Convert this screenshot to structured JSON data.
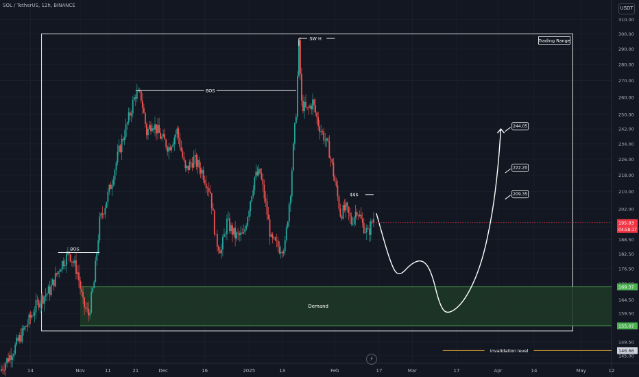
{
  "header": {
    "symbol_line": "SOL / TetherUS, 12h, BINANCE",
    "currency_button": "USDT",
    "bolt_icon": "lightning-icon"
  },
  "colors": {
    "background": "#131722",
    "bull": "#26a69a",
    "bear": "#ef5350",
    "demand_fill": "#1e3a26",
    "demand_line": "#4caf50",
    "annotation": "#ffffff",
    "price_tag": "#f23645",
    "invalidation": "#d7a13a"
  },
  "chart_data": {
    "type": "candlestick",
    "y_axis": {
      "scale": "log",
      "range": [
        142.5,
        314
      ],
      "tick_labels": [
        "310.00",
        "300.00",
        "290.00",
        "280.00",
        "270.00",
        "260.00",
        "250.00",
        "242.00",
        "234.00",
        "226.00",
        "218.00",
        "210.00",
        "202.00",
        "194.00",
        "188.50",
        "182.50",
        "176.50",
        "170.50",
        "164.50",
        "159.50",
        "155.00",
        "149.50",
        "145.00"
      ]
    },
    "x_axis": {
      "range": [
        "2024-10-03",
        "2025-05-12"
      ],
      "tick_labels": [
        {
          "label": "14",
          "date": "2024-10-14"
        },
        {
          "label": "Nov",
          "date": "2024-11-01"
        },
        {
          "label": "11",
          "date": "2024-11-11"
        },
        {
          "label": "21",
          "date": "2024-11-21"
        },
        {
          "label": "Dec",
          "date": "2024-12-01"
        },
        {
          "label": "16",
          "date": "2024-12-16"
        },
        {
          "label": "2025",
          "date": "2025-01-01"
        },
        {
          "label": "13",
          "date": "2025-01-13"
        },
        {
          "label": "Feb",
          "date": "2025-02-01"
        },
        {
          "label": "17",
          "date": "2025-02-17"
        },
        {
          "label": "Mar",
          "date": "2025-03-01"
        },
        {
          "label": "17",
          "date": "2025-03-17"
        },
        {
          "label": "Apr",
          "date": "2025-04-01"
        },
        {
          "label": "14",
          "date": "2025-04-14"
        },
        {
          "label": "May",
          "date": "2025-05-01"
        },
        {
          "label": "12",
          "date": "2025-05-12"
        }
      ]
    },
    "series": [
      {
        "path": [
          [
            "2024-10-03",
            140
          ],
          [
            "2024-10-08",
            147
          ],
          [
            "2024-10-13",
            156
          ],
          [
            "2024-10-17",
            164
          ],
          [
            "2024-10-21",
            168
          ],
          [
            "2024-10-25",
            178
          ],
          [
            "2024-10-28",
            183
          ],
          [
            "2024-10-31",
            175
          ],
          [
            "2024-11-02",
            163
          ],
          [
            "2024-11-04",
            159
          ],
          [
            "2024-11-06",
            171
          ],
          [
            "2024-11-08",
            196
          ],
          [
            "2024-11-10",
            204
          ],
          [
            "2024-11-12",
            213
          ],
          [
            "2024-11-15",
            230
          ],
          [
            "2024-11-18",
            245
          ],
          [
            "2024-11-21",
            262
          ],
          [
            "2024-11-23",
            260
          ],
          [
            "2024-11-25",
            240
          ],
          [
            "2024-11-27",
            246
          ],
          [
            "2024-11-30",
            238
          ],
          [
            "2024-12-03",
            232
          ],
          [
            "2024-12-06",
            241
          ],
          [
            "2024-12-09",
            220
          ],
          [
            "2024-12-12",
            226
          ],
          [
            "2024-12-15",
            220
          ],
          [
            "2024-12-18",
            210
          ],
          [
            "2024-12-20",
            188
          ],
          [
            "2024-12-22",
            184
          ],
          [
            "2024-12-24",
            196
          ],
          [
            "2024-12-27",
            190
          ],
          [
            "2024-12-30",
            190
          ],
          [
            "2025-01-01",
            203
          ],
          [
            "2025-01-03",
            217
          ],
          [
            "2025-01-05",
            219
          ],
          [
            "2025-01-07",
            204
          ],
          [
            "2025-01-09",
            188
          ],
          [
            "2025-01-12",
            185
          ],
          [
            "2025-01-14",
            186
          ],
          [
            "2025-01-16",
            211
          ],
          [
            "2025-01-18",
            252
          ],
          [
            "2025-01-19",
            292
          ],
          [
            "2025-01-20",
            256
          ],
          [
            "2025-01-22",
            252
          ],
          [
            "2025-01-24",
            257
          ],
          [
            "2025-01-26",
            245
          ],
          [
            "2025-01-28",
            238
          ],
          [
            "2025-01-30",
            230
          ],
          [
            "2025-02-01",
            215
          ],
          [
            "2025-02-03",
            200
          ],
          [
            "2025-02-05",
            202
          ],
          [
            "2025-02-07",
            196
          ],
          [
            "2025-02-09",
            202
          ],
          [
            "2025-02-11",
            195
          ],
          [
            "2025-02-13",
            191
          ],
          [
            "2025-02-15",
            198
          ]
        ]
      }
    ],
    "projection": {
      "path": [
        [
          "2025-02-16",
          200
        ],
        [
          "2025-02-21",
          179
        ],
        [
          "2025-02-24",
          173
        ],
        [
          "2025-03-01",
          179
        ],
        [
          "2025-03-05",
          180
        ],
        [
          "2025-03-08",
          175
        ],
        [
          "2025-03-11",
          162
        ],
        [
          "2025-03-14",
          159
        ],
        [
          "2025-03-20",
          164
        ],
        [
          "2025-03-26",
          178
        ],
        [
          "2025-03-30",
          200
        ],
        [
          "2025-04-01",
          222
        ],
        [
          "2025-04-02",
          242
        ]
      ]
    },
    "levels": {
      "demand_top": 169.37,
      "demand_bottom": 155.07,
      "invalidation": 146.66,
      "last_price": 195.83
    },
    "price_tags": [
      {
        "value": 169.37,
        "text": "169.37"
      },
      {
        "value": 155.07,
        "text": "155.07"
      },
      {
        "value": 146.66,
        "text": "146.66"
      },
      {
        "value": 195.83,
        "text": "195.83",
        "sub": "04:58:17"
      }
    ],
    "targets": [
      {
        "value": 244.05,
        "text": "244.05"
      },
      {
        "value": 222.2,
        "text": "222.20"
      },
      {
        "value": 209.35,
        "text": "209.35"
      }
    ],
    "annotations": {
      "bos_1": "BOS",
      "bos_2": "BOS",
      "swing_high": "SW H",
      "liquidity": "$$$",
      "trading_range": "Trading Range",
      "demand": "Demand",
      "invalidation": "invalidation level"
    }
  }
}
